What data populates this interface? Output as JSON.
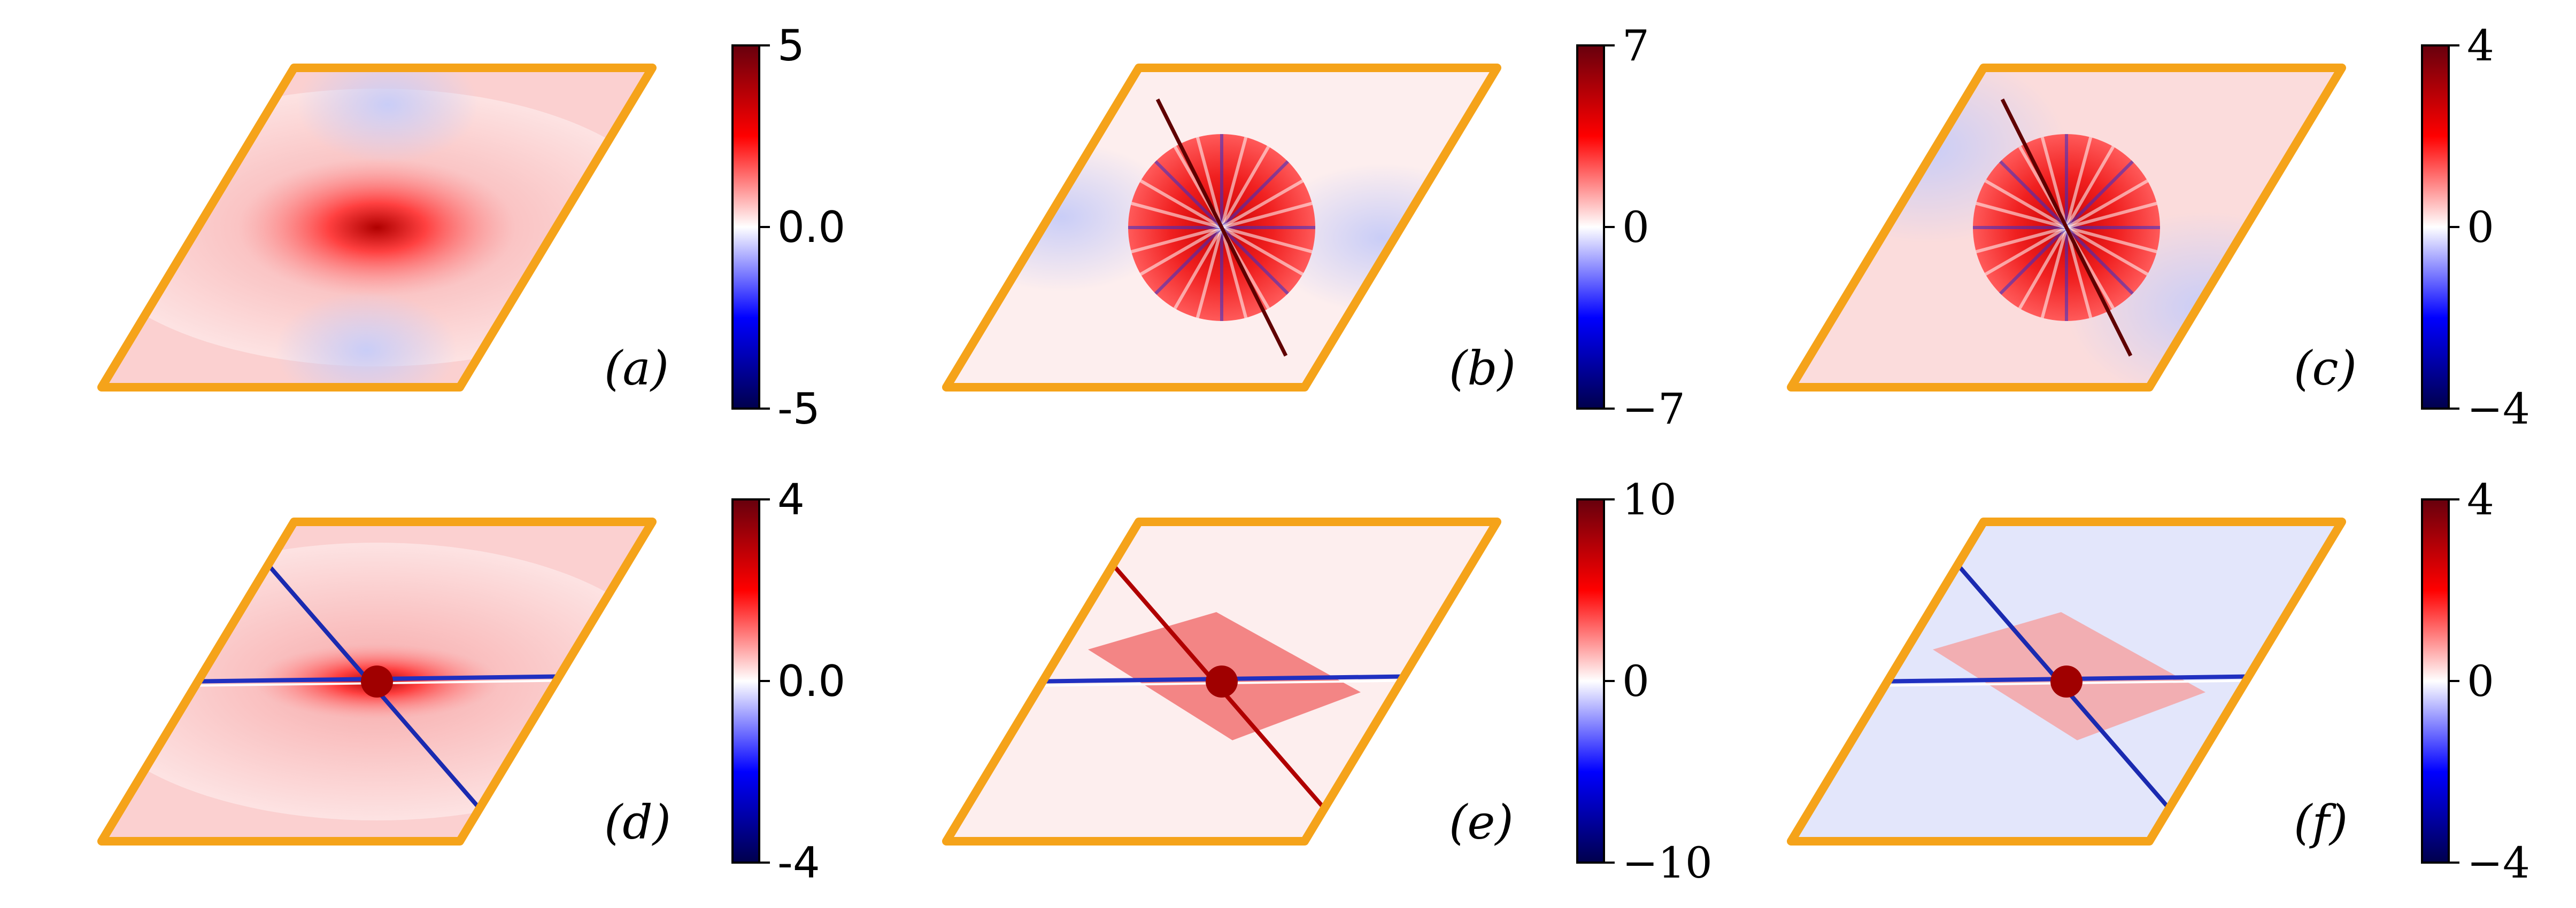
{
  "chart_data": [
    {
      "type": "heatmap",
      "panel_label": "(a)",
      "colorbar": {
        "max": 5,
        "min": -5,
        "ticks": [
          "5",
          "0.0",
          "-5"
        ],
        "font": "sans",
        "colormap": "seismic"
      },
      "pattern": "a"
    },
    {
      "type": "heatmap",
      "panel_label": "(b)",
      "colorbar": {
        "max": 7,
        "min": -7,
        "ticks": [
          "7",
          "0",
          "−7"
        ],
        "font": "math",
        "colormap": "seismic"
      },
      "pattern": "b"
    },
    {
      "type": "heatmap",
      "panel_label": "(c)",
      "colorbar": {
        "max": 4,
        "min": -4,
        "ticks": [
          "4",
          "0",
          "−4"
        ],
        "font": "math",
        "colormap": "seismic"
      },
      "pattern": "c"
    },
    {
      "type": "heatmap",
      "panel_label": "(d)",
      "colorbar": {
        "max": 4,
        "min": -4,
        "ticks": [
          "4",
          "0.0",
          "-4"
        ],
        "font": "sans",
        "colormap": "seismic"
      },
      "pattern": "d"
    },
    {
      "type": "heatmap",
      "panel_label": "(e)",
      "colorbar": {
        "max": 10,
        "min": -10,
        "ticks": [
          "10",
          "0",
          "−10"
        ],
        "font": "math",
        "colormap": "seismic"
      },
      "pattern": "e"
    },
    {
      "type": "heatmap",
      "panel_label": "(f)",
      "colorbar": {
        "max": 4,
        "min": -4,
        "ticks": [
          "4",
          "0",
          "−4"
        ],
        "font": "math",
        "colormap": "seismic"
      },
      "pattern": "f"
    }
  ],
  "colors": {
    "frame": "#f5a31a",
    "cmap_top": "#67000d",
    "cmap_red": "#ff0000",
    "cmap_mid": "#ffffff",
    "cmap_blue": "#0000ff",
    "cmap_bottom": "#00004c"
  }
}
